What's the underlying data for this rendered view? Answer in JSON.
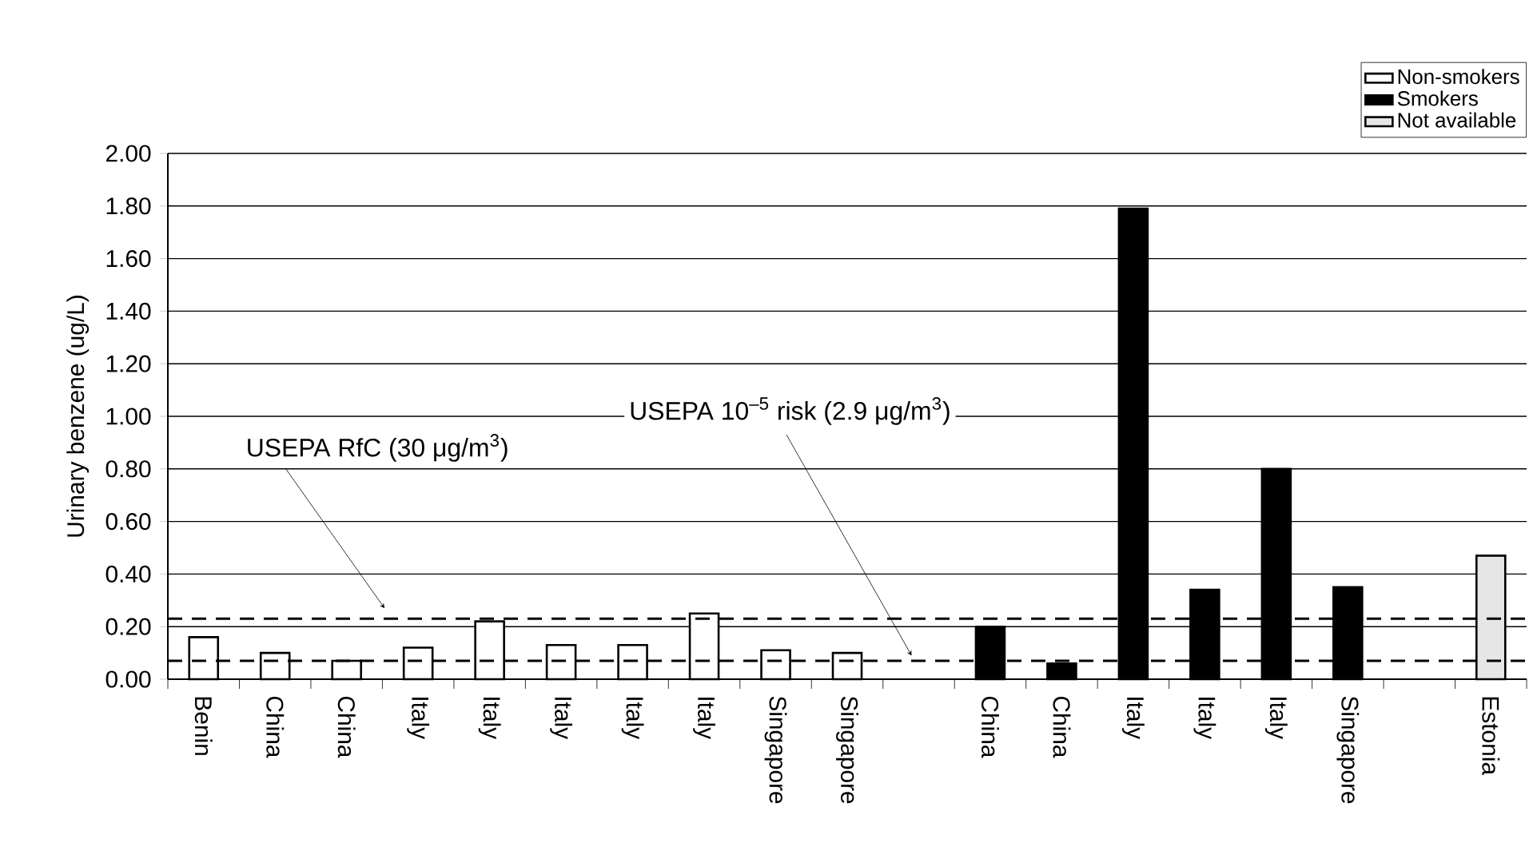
{
  "chart_data": {
    "type": "bar",
    "ylabel": "Urinary benzene (ug/L)",
    "categories": [
      "Benin",
      "China",
      "China",
      "Italy",
      "Italy",
      "Italy",
      "Italy",
      "Italy",
      "Singapore",
      "Singapore",
      null,
      "China",
      "China",
      "Italy",
      "Italy",
      "Italy",
      "Singapore",
      null,
      "Estonia"
    ],
    "series": [
      {
        "name": "Non-smokers",
        "color": "#ffffff",
        "values": [
          0.16,
          0.1,
          0.07,
          0.12,
          0.22,
          0.13,
          0.13,
          0.25,
          0.11,
          0.1,
          null,
          null,
          null,
          null,
          null,
          null,
          null,
          null,
          null
        ]
      },
      {
        "name": "Smokers",
        "color": "#000000",
        "values": [
          null,
          null,
          null,
          null,
          null,
          null,
          null,
          null,
          null,
          null,
          null,
          0.2,
          0.06,
          1.79,
          0.34,
          0.8,
          0.35,
          null,
          null
        ]
      },
      {
        "name": "Not available",
        "color": "#e6e6e6",
        "values": [
          null,
          null,
          null,
          null,
          null,
          null,
          null,
          null,
          null,
          null,
          null,
          null,
          null,
          null,
          null,
          null,
          null,
          null,
          0.47
        ]
      }
    ],
    "ylim": [
      0,
      2
    ],
    "yticks": [
      {
        "value": 0,
        "label": "0.00"
      },
      {
        "value": 0.2,
        "label": "0.20"
      },
      {
        "value": 0.4,
        "label": "0.40"
      },
      {
        "value": 0.6,
        "label": "0.60"
      },
      {
        "value": 0.8,
        "label": "0.80"
      },
      {
        "value": 1.0,
        "label": "1.00"
      },
      {
        "value": 1.2,
        "label": "1.20"
      },
      {
        "value": 1.4,
        "label": "1.40"
      },
      {
        "value": 1.6,
        "label": "1.60"
      },
      {
        "value": 1.8,
        "label": "1.80"
      },
      {
        "value": 2.0,
        "label": "2.00"
      }
    ],
    "grid": "y",
    "legend": "top right",
    "ref_lines": [
      {
        "axis": "y",
        "value": 0.23,
        "label": "USEPA RfC (30 μg/m$^{3}$)",
        "color": "#000000",
        "line_style": "dashed"
      },
      {
        "axis": "y",
        "value": 0.07,
        "label": "USEPA 10$^{–5}$ risk (2.9 μg/m$^{3}$)",
        "color": "#000000",
        "line_style": "dashed"
      }
    ]
  }
}
